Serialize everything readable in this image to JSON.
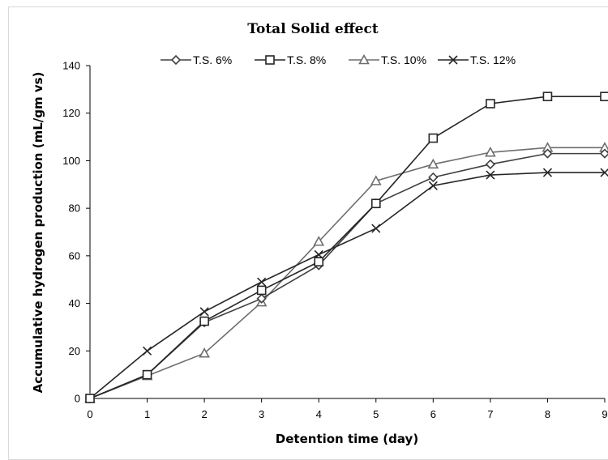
{
  "chart_data": {
    "type": "line",
    "title": "Total Solid effect",
    "xlabel": "Detention time (day)",
    "ylabel": "Accumulative  hydrogen production  (mL/gm vs)",
    "x": [
      0,
      1,
      2,
      3,
      4,
      5,
      6,
      7,
      8,
      9
    ],
    "xlim": [
      0,
      9
    ],
    "ylim": [
      0,
      140
    ],
    "x_ticks": [
      "0",
      "1",
      "2",
      "3",
      "4",
      "5",
      "6",
      "7",
      "8",
      "9"
    ],
    "y_ticks": [
      "0",
      "20",
      "40",
      "60",
      "80",
      "100",
      "120",
      "140"
    ],
    "grid": false,
    "legend_position": "top",
    "series": [
      {
        "name": "T.S. 6%",
        "marker": "diamond",
        "color": "#404040",
        "values": [
          0,
          10,
          32,
          42,
          56,
          82,
          93,
          98.5,
          103,
          103
        ]
      },
      {
        "name": "T.S. 8%",
        "marker": "square",
        "color": "#262626",
        "values": [
          0,
          10,
          32.5,
          45.5,
          57.5,
          82,
          109.5,
          124,
          127,
          127
        ]
      },
      {
        "name": "T.S. 10%",
        "marker": "triangle",
        "color": "#6e6e6e",
        "values": [
          0,
          9.5,
          19,
          40.5,
          66,
          91.5,
          98.5,
          103.5,
          105.5,
          105.5
        ]
      },
      {
        "name": "T.S. 12%",
        "marker": "x",
        "color": "#262626",
        "values": [
          0,
          20,
          36.5,
          49,
          60.5,
          71.5,
          89.5,
          94,
          95,
          95
        ]
      }
    ]
  }
}
